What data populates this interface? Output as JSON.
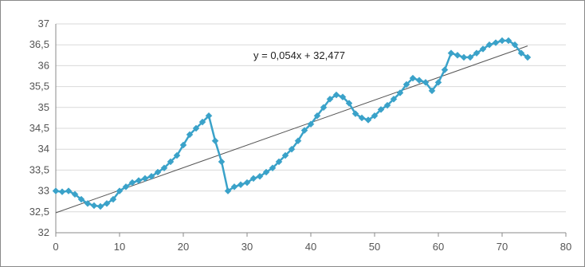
{
  "chart_data": {
    "type": "scatter",
    "title": "",
    "xlabel": "",
    "ylabel": "",
    "xlim": [
      0,
      80
    ],
    "ylim": [
      32,
      37
    ],
    "x_ticks": [
      0,
      10,
      20,
      30,
      40,
      50,
      60,
      70,
      80
    ],
    "y_ticks": [
      32,
      32.5,
      33,
      33.5,
      34,
      34.5,
      35,
      35.5,
      36,
      36.5,
      37
    ],
    "x_tick_labels": [
      "0",
      "10",
      "20",
      "30",
      "40",
      "50",
      "60",
      "70",
      "80"
    ],
    "y_tick_labels": [
      "32",
      "32,5",
      "33",
      "33,5",
      "34",
      "34,5",
      "35",
      "35,5",
      "36",
      "36,5",
      "37"
    ],
    "grid": {
      "horizontal": true,
      "vertical": false
    },
    "legend": "none",
    "series": [
      {
        "marker": "diamond",
        "line": true,
        "color": "#3aa2c9",
        "points": [
          [
            0,
            33.0
          ],
          [
            1,
            32.98
          ],
          [
            2,
            33.0
          ],
          [
            3,
            32.92
          ],
          [
            4,
            32.8
          ],
          [
            5,
            32.7
          ],
          [
            6,
            32.65
          ],
          [
            7,
            32.63
          ],
          [
            8,
            32.7
          ],
          [
            9,
            32.8
          ],
          [
            10,
            33.0
          ],
          [
            11,
            33.1
          ],
          [
            12,
            33.2
          ],
          [
            13,
            33.25
          ],
          [
            14,
            33.3
          ],
          [
            15,
            33.35
          ],
          [
            16,
            33.45
          ],
          [
            17,
            33.55
          ],
          [
            18,
            33.7
          ],
          [
            19,
            33.85
          ],
          [
            20,
            34.1
          ],
          [
            21,
            34.35
          ],
          [
            22,
            34.5
          ],
          [
            23,
            34.65
          ],
          [
            24,
            34.8
          ],
          [
            25,
            34.2
          ],
          [
            26,
            33.7
          ],
          [
            27,
            33.0
          ],
          [
            28,
            33.1
          ],
          [
            29,
            33.15
          ],
          [
            30,
            33.2
          ],
          [
            31,
            33.3
          ],
          [
            32,
            33.35
          ],
          [
            33,
            33.45
          ],
          [
            34,
            33.55
          ],
          [
            35,
            33.7
          ],
          [
            36,
            33.85
          ],
          [
            37,
            34.0
          ],
          [
            38,
            34.2
          ],
          [
            39,
            34.45
          ],
          [
            40,
            34.6
          ],
          [
            41,
            34.8
          ],
          [
            42,
            35.0
          ],
          [
            43,
            35.2
          ],
          [
            44,
            35.3
          ],
          [
            45,
            35.25
          ],
          [
            46,
            35.1
          ],
          [
            47,
            34.85
          ],
          [
            48,
            34.75
          ],
          [
            49,
            34.7
          ],
          [
            50,
            34.8
          ],
          [
            51,
            34.95
          ],
          [
            52,
            35.05
          ],
          [
            53,
            35.2
          ],
          [
            54,
            35.35
          ],
          [
            55,
            35.55
          ],
          [
            56,
            35.7
          ],
          [
            57,
            35.65
          ],
          [
            58,
            35.6
          ],
          [
            59,
            35.4
          ],
          [
            60,
            35.6
          ],
          [
            61,
            35.9
          ],
          [
            62,
            36.3
          ],
          [
            63,
            36.25
          ],
          [
            64,
            36.2
          ],
          [
            65,
            36.2
          ],
          [
            66,
            36.3
          ],
          [
            67,
            36.4
          ],
          [
            68,
            36.5
          ],
          [
            69,
            36.55
          ],
          [
            70,
            36.6
          ],
          [
            71,
            36.6
          ],
          [
            72,
            36.5
          ],
          [
            73,
            36.3
          ],
          [
            74,
            36.2
          ]
        ]
      }
    ],
    "trendline": {
      "slope": 0.054,
      "intercept": 32.477,
      "x_range": [
        0,
        74
      ],
      "color": "#555555",
      "label": "y = 0,054x + 32,477"
    }
  }
}
